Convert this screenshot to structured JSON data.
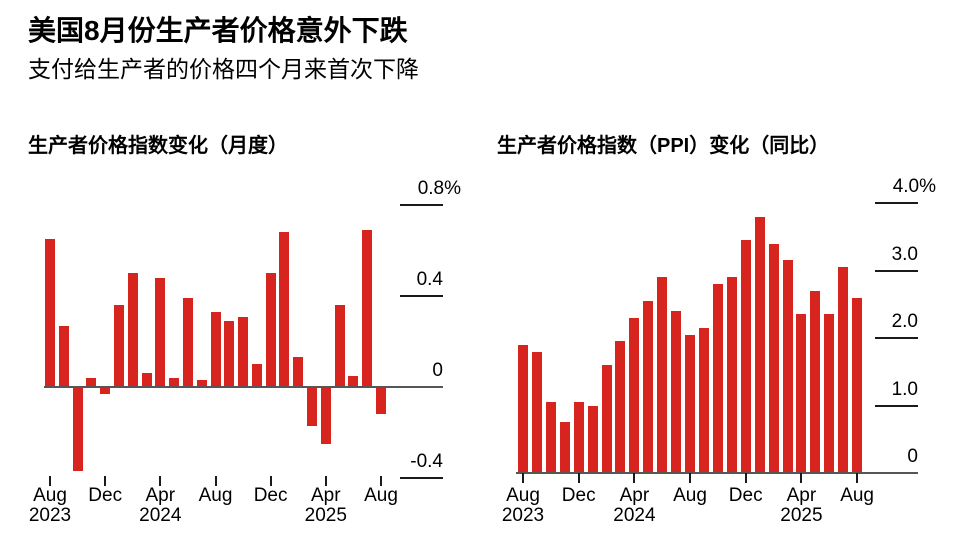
{
  "header": {
    "title": "美国8月份生产者价格意外下跌",
    "subtitle": "支付给生产者的价格四个月来首次下降"
  },
  "colors": {
    "bar_red": "#d7241e",
    "axis_line": "#55565a",
    "tick": "#1a1a1a",
    "text": "#000000",
    "background": "#ffffff"
  },
  "chart_data": [
    {
      "type": "bar",
      "title": "生产者价格指数变化（月度）",
      "unit": "%",
      "legend": "none",
      "grid": "off",
      "ylim": [
        -0.4,
        0.8
      ],
      "categories": [
        "Aug 2023",
        "Sep 2023",
        "Oct 2023",
        "Nov 2023",
        "Dec 2023",
        "Jan 2024",
        "Feb 2024",
        "Mar 2024",
        "Apr 2024",
        "May 2024",
        "Jun 2024",
        "Jul 2024",
        "Aug 2024",
        "Sep 2024",
        "Oct 2024",
        "Nov 2024",
        "Dec 2024",
        "Jan 2025",
        "Feb 2025",
        "Mar 2025",
        "Apr 2025",
        "May 2025",
        "Jun 2025",
        "Jul 2025",
        "Aug 2025"
      ],
      "values": [
        0.65,
        0.27,
        -0.37,
        0.04,
        -0.03,
        0.36,
        0.5,
        0.06,
        0.48,
        0.04,
        0.39,
        0.03,
        0.33,
        0.29,
        0.31,
        0.1,
        0.5,
        0.68,
        0.13,
        -0.17,
        -0.25,
        0.36,
        0.05,
        0.69,
        -0.12
      ],
      "yticks": [
        {
          "label": "0.8%",
          "value": 0.8
        },
        {
          "label": "0.4",
          "value": 0.4
        },
        {
          "label": "0",
          "value": 0
        },
        {
          "label": "-0.4",
          "value": -0.4
        }
      ],
      "xticks": [
        {
          "label": "Aug",
          "year": "2023"
        },
        {
          "label": "Dec",
          "year": ""
        },
        {
          "label": "Apr",
          "year": "2024"
        },
        {
          "label": "Aug",
          "year": ""
        },
        {
          "label": "Dec",
          "year": ""
        },
        {
          "label": "Apr",
          "year": "2025"
        },
        {
          "label": "Aug",
          "year": ""
        }
      ],
      "bar_color": "#d7241e"
    },
    {
      "type": "bar",
      "title": "生产者价格指数（PPI）变化（同比）",
      "unit": "%",
      "legend": "none",
      "grid": "off",
      "ylim": [
        0,
        4.0
      ],
      "categories": [
        "Aug 2023",
        "Sep 2023",
        "Oct 2023",
        "Nov 2023",
        "Dec 2023",
        "Jan 2024",
        "Feb 2024",
        "Mar 2024",
        "Apr 2024",
        "May 2024",
        "Jun 2024",
        "Jul 2024",
        "Aug 2024",
        "Sep 2024",
        "Oct 2024",
        "Nov 2024",
        "Dec 2024",
        "Jan 2025",
        "Feb 2025",
        "Mar 2025",
        "Apr 2025",
        "May 2025",
        "Jun 2025",
        "Jul 2025",
        "Aug 2025"
      ],
      "values": [
        1.9,
        1.8,
        1.05,
        0.75,
        1.05,
        1.0,
        1.6,
        1.95,
        2.3,
        2.55,
        2.9,
        2.4,
        2.05,
        2.15,
        2.8,
        2.9,
        3.45,
        3.8,
        3.4,
        3.15,
        2.35,
        2.7,
        2.35,
        3.05,
        2.6
      ],
      "yticks": [
        {
          "label": "4.0%",
          "value": 4.0
        },
        {
          "label": "3.0",
          "value": 3.0
        },
        {
          "label": "2.0",
          "value": 2.0
        },
        {
          "label": "1.0",
          "value": 1.0
        },
        {
          "label": "0",
          "value": 0
        }
      ],
      "xticks": [
        {
          "label": "Aug",
          "year": "2023"
        },
        {
          "label": "Dec",
          "year": ""
        },
        {
          "label": "Apr",
          "year": "2024"
        },
        {
          "label": "Aug",
          "year": ""
        },
        {
          "label": "Dec",
          "year": ""
        },
        {
          "label": "Apr",
          "year": "2025"
        },
        {
          "label": "Aug",
          "year": ""
        }
      ],
      "bar_color": "#d7241e"
    }
  ]
}
